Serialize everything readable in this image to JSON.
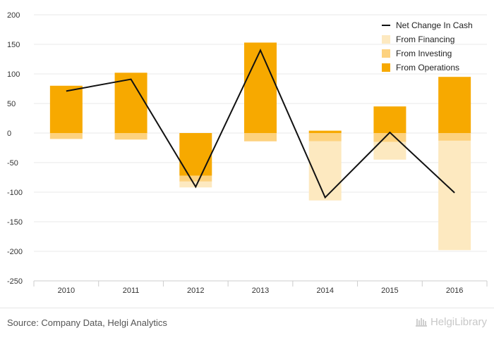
{
  "chart_data": {
    "type": "bar",
    "stacked": true,
    "categories": [
      "2010",
      "2011",
      "2012",
      "2013",
      "2014",
      "2015",
      "2016"
    ],
    "ylim": [
      -250,
      200
    ],
    "yticks": [
      -250,
      -200,
      -150,
      -100,
      -50,
      0,
      50,
      100,
      150,
      200
    ],
    "grid": true,
    "legend_position": "top-right",
    "series": [
      {
        "name": "From Financing",
        "kind": "bar",
        "color": "#fde9c0",
        "values": [
          0,
          0,
          -10,
          0,
          -100,
          -30,
          -185
        ]
      },
      {
        "name": "From Investing",
        "kind": "bar",
        "color": "#fdd27f",
        "values": [
          -10,
          -11,
          -10,
          -14,
          -14,
          -15,
          -13
        ]
      },
      {
        "name": "From Operations",
        "kind": "bar",
        "color": "#f7a900",
        "values": [
          80,
          102,
          -72,
          153,
          4,
          45,
          95
        ]
      },
      {
        "name": "Net Change In Cash",
        "kind": "line",
        "color": "#111111",
        "values": [
          71,
          91,
          -91,
          140,
          -109,
          1,
          -101
        ]
      }
    ],
    "legend_order": [
      "Net Change In Cash",
      "From Financing",
      "From Investing",
      "From Operations"
    ]
  },
  "footer": {
    "source": "Source: Company Data, Helgi Analytics",
    "brand": "HelgiLibrary"
  }
}
